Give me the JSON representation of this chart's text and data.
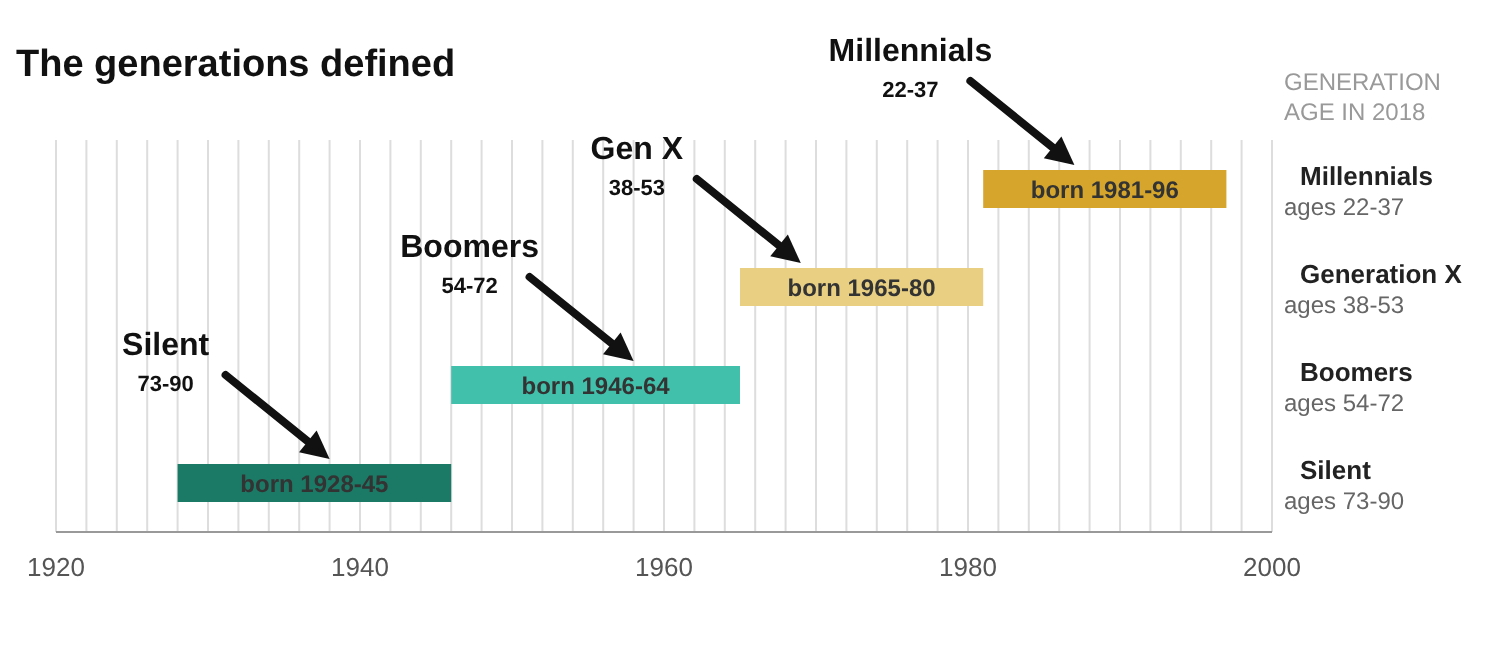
{
  "chart_data": {
    "type": "bar",
    "orientation": "horizontal",
    "title": "The generations defined",
    "categories": [
      "Millennials",
      "Generation X",
      "Boomers",
      "Silent"
    ],
    "base": [
      1981,
      1965,
      1946,
      1928
    ],
    "values": [
      16,
      16,
      19,
      18
    ],
    "colors": [
      "#d5a62b",
      "#e8cf82",
      "#41c0ab",
      "#1b7a66"
    ],
    "value_labels": [
      "born 1981-96",
      "born 1965-80",
      "born 1946-64",
      "born 1928-45"
    ],
    "xlim": [
      1920,
      2000
    ],
    "xticks": [
      1920,
      {
        "value": 1922,
        "label": null
      },
      {
        "value": 1924,
        "label": null
      },
      {
        "value": 1926,
        "label": null
      },
      {
        "value": 1928,
        "label": null
      },
      {
        "value": 1930,
        "label": null
      },
      {
        "value": 1932,
        "label": null
      },
      {
        "value": 1934,
        "label": null
      },
      {
        "value": 1936,
        "label": null
      },
      {
        "value": 1938,
        "label": null
      },
      1940,
      {
        "value": 1942,
        "label": null
      },
      {
        "value": 1944,
        "label": null
      },
      {
        "value": 1946,
        "label": null
      },
      {
        "value": 1948,
        "label": null
      },
      {
        "value": 1950,
        "label": null
      },
      {
        "value": 1952,
        "label": null
      },
      {
        "value": 1954,
        "label": null
      },
      {
        "value": 1956,
        "label": null
      },
      {
        "value": 1958,
        "label": null
      },
      1960,
      {
        "value": 1962,
        "label": null
      },
      {
        "value": 1964,
        "label": null
      },
      {
        "value": 1966,
        "label": null
      },
      {
        "value": 1968,
        "label": null
      },
      {
        "value": 1970,
        "label": null
      },
      {
        "value": 1972,
        "label": null
      },
      {
        "value": 1974,
        "label": null
      },
      {
        "value": 1976,
        "label": null
      },
      {
        "value": 1978,
        "label": null
      },
      1980,
      {
        "value": 1982,
        "label": null
      },
      {
        "value": 1984,
        "label": null
      },
      {
        "value": 1986,
        "label": null
      },
      {
        "value": 1988,
        "label": null
      },
      {
        "value": 1990,
        "label": null
      },
      {
        "value": 1992,
        "label": null
      },
      {
        "value": 1994,
        "label": null
      },
      {
        "value": 1996,
        "label": null
      },
      {
        "value": 1998,
        "label": null
      },
      2000
    ],
    "grid": "x",
    "annotations": [
      "GENERATION\nAGE IN 2018",
      "Millennials\n22-37",
      "Gen X\n38-53",
      "Boomers\n54-72",
      "Silent\n73-90",
      "ages 22-37",
      "ages 38-53",
      "ages 54-72",
      "ages 73-90"
    ]
  }
}
